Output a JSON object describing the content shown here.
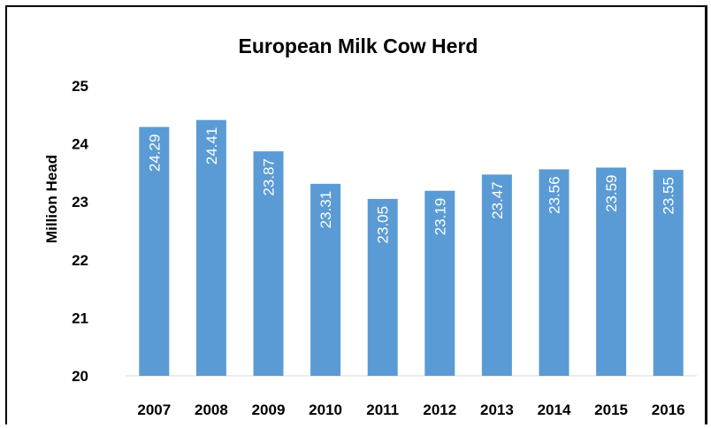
{
  "chart_data": {
    "type": "bar",
    "title": "European Milk Cow Herd",
    "xlabel": "",
    "ylabel": "Million Head",
    "categories": [
      "2007",
      "2008",
      "2009",
      "2010",
      "2011",
      "2012",
      "2013",
      "2014",
      "2015",
      "2016"
    ],
    "values": [
      24.29,
      24.41,
      23.87,
      23.31,
      23.05,
      23.19,
      23.47,
      23.56,
      23.59,
      23.55
    ],
    "data_labels": [
      "24.29",
      "24.41",
      "23.87",
      "23.31",
      "23.05",
      "23.19",
      "23.47",
      "23.56",
      "23.59",
      "23.55"
    ],
    "ylim": [
      20,
      25
    ],
    "yticks": [
      "20",
      "21",
      "22",
      "23",
      "24",
      "25"
    ],
    "bar_color": "#5b9bd5",
    "data_label_color": "#ffffff",
    "data_label_orientation": "vertical",
    "grid": false,
    "legend": false
  }
}
